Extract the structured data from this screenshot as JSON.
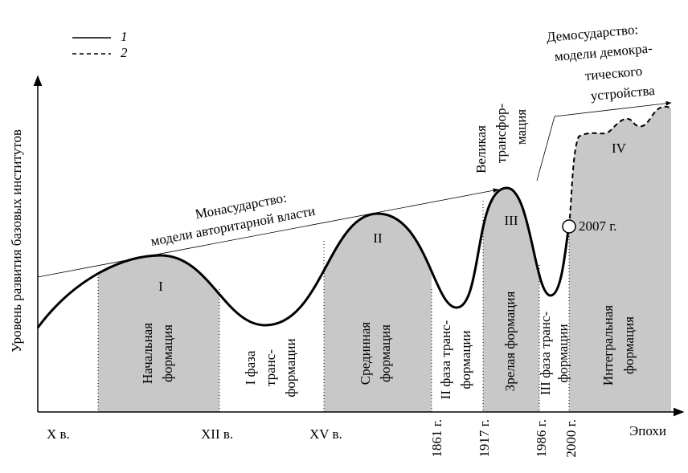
{
  "y_axis_label": "Уровень развития базовых институтов",
  "legend": {
    "solid": "1",
    "dashed": "2"
  },
  "x_labels": [
    "X в.",
    "XII в.",
    "XV в.",
    "1861 г.",
    "1917 г.",
    "1986 г.",
    "2000 г.",
    "Эпохи"
  ],
  "formations": [
    {
      "numeral": "I",
      "lines": [
        "Начальная",
        "формация"
      ]
    },
    {
      "numeral": "II",
      "lines": [
        "Срединная",
        "формация"
      ]
    },
    {
      "numeral": "III",
      "lines": [
        "Зрелая формация"
      ]
    },
    {
      "numeral": "IV",
      "lines": [
        "Интегральная",
        "формация"
      ]
    }
  ],
  "transitions": [
    {
      "lines": [
        "I фаза",
        "транс-",
        "формации"
      ]
    },
    {
      "lines": [
        "II фаза транс-",
        "формации"
      ]
    },
    {
      "lines": [
        "III фаза транс-",
        "формации"
      ]
    }
  ],
  "monasudarstvo": [
    "Монасударство:",
    "модели авторитарной власти"
  ],
  "great_transformation": [
    "Великая",
    "трансфор-",
    "мация"
  ],
  "demosudarstvo": [
    "Демосударство:",
    "модели демокра-",
    "тического",
    "устройства"
  ],
  "marker_label": "2007 г."
}
